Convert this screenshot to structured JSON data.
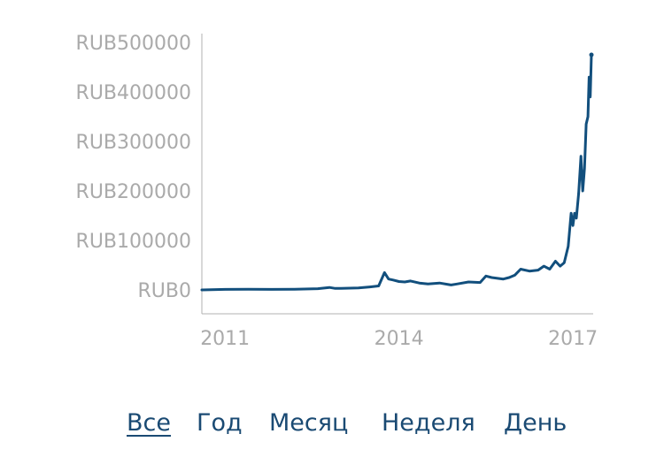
{
  "chart_data": {
    "type": "line",
    "currency_prefix": "RUB",
    "ylim": [
      0,
      500000
    ],
    "y_ticks": [
      0,
      100000,
      200000,
      300000,
      400000,
      500000
    ],
    "x_ticks": [
      "2011",
      "2014",
      "2017"
    ],
    "xlim": [
      2010.6,
      2017.35
    ],
    "grid": false,
    "line_color": "#124f7d",
    "series": [
      {
        "x": [
          2010.6,
          2011.0,
          2011.4,
          2011.8,
          2012.2,
          2012.6,
          2012.8,
          2012.9,
          2013.0,
          2013.3,
          2013.5,
          2013.65,
          2013.75,
          2013.82,
          2013.9,
          2014.0,
          2014.1,
          2014.2,
          2014.35,
          2014.5,
          2014.7,
          2014.9,
          2015.0,
          2015.2,
          2015.4,
          2015.5,
          2015.6,
          2015.8,
          2015.9,
          2016.0,
          2016.1,
          2016.25,
          2016.4,
          2016.5,
          2016.6,
          2016.7,
          2016.78,
          2016.85,
          2016.92,
          2016.97,
          2017.0,
          2017.03,
          2017.06,
          2017.1,
          2017.14,
          2017.17,
          2017.2,
          2017.23,
          2017.26,
          2017.28,
          2017.3,
          2017.32
        ],
        "y": [
          0,
          1000,
          1500,
          1000,
          1500,
          2500,
          5000,
          3000,
          3000,
          4000,
          6000,
          8000,
          35000,
          22000,
          20000,
          17000,
          16000,
          18000,
          14000,
          12000,
          14000,
          10000,
          12000,
          16000,
          15000,
          28000,
          25000,
          22000,
          25000,
          30000,
          42000,
          38000,
          40000,
          48000,
          42000,
          58000,
          48000,
          55000,
          88000,
          155000,
          130000,
          155000,
          145000,
          195000,
          270000,
          200000,
          245000,
          335000,
          350000,
          430000,
          390000,
          475000
        ]
      }
    ]
  },
  "range_selector": {
    "items": [
      {
        "label": "Все",
        "active": true
      },
      {
        "label": "Год",
        "active": false
      },
      {
        "label": "Месяц",
        "active": false
      },
      {
        "label": "Неделя",
        "active": false
      },
      {
        "label": "День",
        "active": false
      }
    ]
  }
}
